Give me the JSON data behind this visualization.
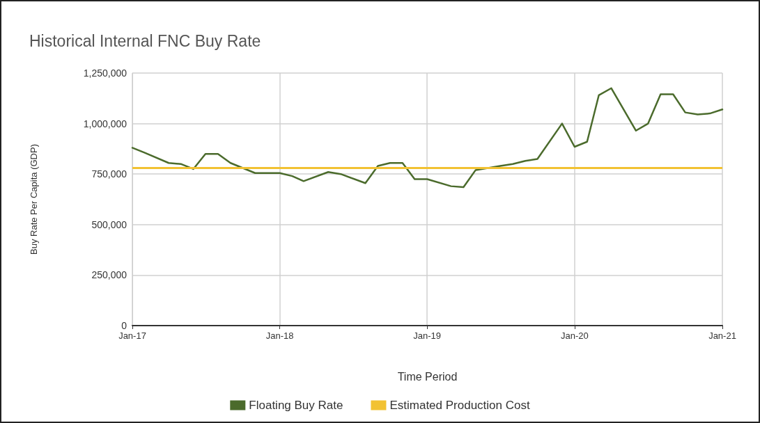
{
  "chart_data": {
    "type": "line",
    "title": "Historical Internal FNC Buy Rate",
    "xlabel": "Time Period",
    "ylabel": "Buy Rate Per Capita (GDP)",
    "x": [
      "2017-01",
      "2017-02",
      "2017-04",
      "2017-05",
      "2017-06",
      "2017-07",
      "2017-08",
      "2017-09",
      "2017-11",
      "2018-01",
      "2018-02",
      "2018-03",
      "2018-05",
      "2018-06",
      "2018-08",
      "2018-09",
      "2018-10",
      "2018-11",
      "2018-12",
      "2019-01",
      "2019-03",
      "2019-04",
      "2019-05",
      "2019-07",
      "2019-08",
      "2019-09",
      "2019-10",
      "2019-12",
      "2020-01",
      "2020-02",
      "2020-03",
      "2020-04",
      "2020-06",
      "2020-07",
      "2020-08",
      "2020-09",
      "2020-10",
      "2020-11",
      "2020-12",
      "2021-01"
    ],
    "series": [
      {
        "name": "Floating Buy Rate",
        "color": "#4b6b2c",
        "values": [
          880000,
          855000,
          805000,
          800000,
          775000,
          850000,
          850000,
          805000,
          755000,
          755000,
          740000,
          715000,
          760000,
          750000,
          705000,
          790000,
          805000,
          805000,
          725000,
          725000,
          690000,
          685000,
          770000,
          790000,
          800000,
          815000,
          825000,
          1000000,
          885000,
          910000,
          1140000,
          1175000,
          965000,
          1000000,
          1145000,
          1145000,
          1055000,
          1045000,
          1050000,
          1070000
        ]
      }
    ],
    "ref_lines": [
      {
        "axis": "y",
        "value": 780000,
        "label": "Estimated Production Cost",
        "color": "#f2c232"
      }
    ],
    "xlim": [
      "2017-01",
      "2021-01"
    ],
    "xticks": [
      {
        "value": "2017-01",
        "label": "Jan-17"
      },
      {
        "value": "2018-01",
        "label": "Jan-18"
      },
      {
        "value": "2019-01",
        "label": "Jan-19"
      },
      {
        "value": "2020-01",
        "label": "Jan-20"
      },
      {
        "value": "2021-01",
        "label": "Jan-21"
      }
    ],
    "ylim": [
      0,
      1250000
    ],
    "yticks": [
      {
        "value": 0,
        "label": "0"
      },
      {
        "value": 250000,
        "label": "250,000"
      },
      {
        "value": 500000,
        "label": "500,000"
      },
      {
        "value": 750000,
        "label": "750,000"
      },
      {
        "value": 1000000,
        "label": "1,000,000"
      },
      {
        "value": 1250000,
        "label": "1,250,000"
      }
    ],
    "grid": true,
    "legend": "bottom",
    "marker": "none",
    "line_style": "solid"
  }
}
